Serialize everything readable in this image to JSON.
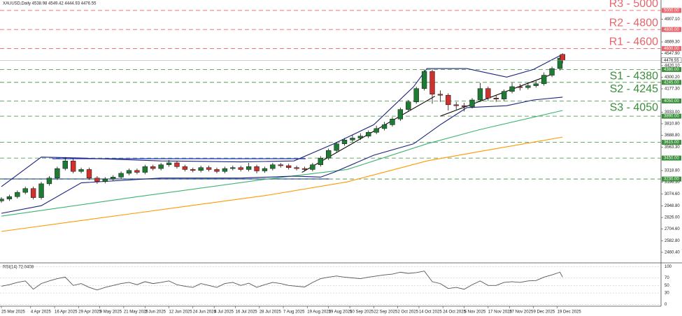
{
  "chart_data": [
    {
      "type": "candlestick",
      "title": "XAUUSD,Daily  4538.98 4549.42 4444.93 4476.55",
      "x": [
        0,
        3,
        6,
        9,
        12,
        15,
        18,
        21,
        24,
        27,
        30,
        33,
        36,
        39,
        42,
        45,
        48,
        51,
        54,
        57,
        60,
        63,
        66,
        69,
        72,
        75,
        78,
        81,
        84,
        87,
        90,
        93,
        96,
        99,
        102,
        105,
        108,
        111,
        114,
        117,
        120,
        123,
        126,
        129,
        132,
        135,
        138,
        141,
        144,
        147,
        150,
        153,
        156,
        159,
        162,
        165,
        168,
        171,
        174,
        177,
        180,
        183,
        186,
        189,
        192,
        195,
        198,
        201,
        204,
        207,
        210,
        211
      ],
      "open": [
        3000,
        3020,
        3045,
        3090,
        3130,
        3035,
        3180,
        3240,
        3340,
        3420,
        3310,
        3330,
        3240,
        3205,
        3230,
        3250,
        3290,
        3320,
        3300,
        3360,
        3340,
        3380,
        3400,
        3360,
        3330,
        3320,
        3350,
        3330,
        3310,
        3340,
        3350,
        3330,
        3360,
        3315,
        3340,
        3380,
        3370,
        3350,
        3340,
        3330,
        3380,
        3450,
        3530,
        3600,
        3640,
        3660,
        3680,
        3720,
        3760,
        3800,
        3860,
        3960,
        4040,
        4180,
        4360,
        4120,
        4110,
        4010,
        4000,
        3990,
        4060,
        4180,
        4080,
        4070,
        4150,
        4200,
        4190,
        4210,
        4230,
        4320,
        4390,
        4538.98
      ],
      "high": [
        3040,
        3065,
        3110,
        3150,
        3150,
        3200,
        3260,
        3360,
        3460,
        3440,
        3350,
        3350,
        3260,
        3250,
        3270,
        3310,
        3340,
        3340,
        3380,
        3380,
        3400,
        3430,
        3420,
        3380,
        3350,
        3370,
        3370,
        3350,
        3360,
        3370,
        3370,
        3400,
        3380,
        3360,
        3400,
        3400,
        3390,
        3370,
        3360,
        3400,
        3470,
        3550,
        3620,
        3660,
        3690,
        3710,
        3740,
        3790,
        3830,
        3880,
        3980,
        4060,
        4200,
        4380,
        4380,
        4160,
        4130,
        4040,
        4030,
        4080,
        4240,
        4200,
        4110,
        4170,
        4240,
        4230,
        4240,
        4260,
        4350,
        4410,
        4530,
        4549.42
      ],
      "low": [
        2980,
        3000,
        3025,
        3070,
        3015,
        3015,
        3160,
        3220,
        3320,
        3290,
        3290,
        3220,
        3180,
        3185,
        3210,
        3230,
        3270,
        3280,
        3280,
        3320,
        3320,
        3360,
        3340,
        3310,
        3300,
        3300,
        3310,
        3290,
        3290,
        3320,
        3310,
        3310,
        3290,
        3295,
        3320,
        3350,
        3330,
        3320,
        3310,
        3310,
        3360,
        3430,
        3510,
        3580,
        3620,
        3640,
        3660,
        3700,
        3740,
        3780,
        3840,
        3940,
        4020,
        4160,
        4020,
        4040,
        3950,
        3960,
        3940,
        3970,
        4040,
        4050,
        4040,
        4050,
        4130,
        4160,
        4170,
        4190,
        4210,
        4300,
        4370,
        4444.93
      ],
      "close": [
        3020,
        3045,
        3090,
        3130,
        3035,
        3180,
        3240,
        3340,
        3420,
        3310,
        3330,
        3240,
        3205,
        3230,
        3250,
        3290,
        3320,
        3300,
        3360,
        3340,
        3380,
        3400,
        3360,
        3330,
        3320,
        3350,
        3330,
        3310,
        3340,
        3350,
        3330,
        3360,
        3315,
        3340,
        3380,
        3370,
        3350,
        3340,
        3330,
        3380,
        3450,
        3530,
        3600,
        3640,
        3660,
        3680,
        3720,
        3760,
        3800,
        3860,
        3960,
        4040,
        4180,
        4360,
        4120,
        4110,
        4010,
        4000,
        3990,
        4060,
        4180,
        4080,
        4070,
        4150,
        4200,
        4190,
        4210,
        4230,
        4320,
        4390,
        4500,
        4476.55
      ],
      "up_color": "#1e7b34",
      "down_color": "#d0312d",
      "overlays": [
        {
          "color": "#3cb371",
          "x": [
            0,
            50,
            100,
            130,
            160,
            180,
            211
          ],
          "values": [
            2840,
            3040,
            3230,
            3330,
            3600,
            3750,
            3950
          ]
        },
        {
          "color": "#ff9800",
          "x": [
            0,
            50,
            100,
            130,
            160,
            180,
            211
          ],
          "values": [
            2680,
            2870,
            3060,
            3200,
            3420,
            3520,
            3670
          ]
        },
        {
          "color": "#1a237e",
          "x": [
            0,
            15,
            30,
            60,
            90,
            110,
            125,
            140,
            155,
            160,
            175,
            190,
            200,
            211
          ],
          "values": [
            3150,
            3460,
            3450,
            3420,
            3410,
            3420,
            3600,
            3800,
            4200,
            4390,
            4390,
            4300,
            4380,
            4540
          ]
        },
        {
          "color": "#1a237e",
          "x": [
            0,
            15,
            30,
            60,
            90,
            110,
            120,
            125,
            140,
            155,
            165,
            175,
            190,
            200,
            211
          ],
          "values": [
            2870,
            2950,
            3190,
            3240,
            3240,
            3260,
            3250,
            3300,
            3480,
            3600,
            3800,
            3980,
            4000,
            4060,
            4090
          ]
        },
        {
          "color": "#000000",
          "x": [
            113,
            163
          ],
          "values": [
            3300,
            4100
          ]
        },
        {
          "color": "#000000",
          "x": [
            165,
            207
          ],
          "values": [
            3890,
            4330
          ]
        }
      ],
      "levels": [
        {
          "value": 5000,
          "text": "R3 - 5000",
          "tag": "5000.00",
          "color": "#e8656b"
        },
        {
          "value": 4800,
          "text": "R2 - 4800",
          "tag": "4800.00",
          "color": "#e8656b"
        },
        {
          "value": 4600,
          "text": "R1 - 4600",
          "tag": "4600.00",
          "color": "#e8656b"
        },
        {
          "value": 4380,
          "text": "S1 - 4380",
          "tag": "4380.00",
          "color": "#3a8f3a"
        },
        {
          "value": 4245,
          "text": "S2 - 4245",
          "tag": "4245.00",
          "color": "#3a8f3a"
        },
        {
          "value": 4050,
          "text": "S3 - 4050",
          "tag": "4050.00",
          "color": "#3a8f3a"
        },
        {
          "value": 3890,
          "tag": "3890.00",
          "color": "#3a8f3a"
        },
        {
          "value": 3615,
          "tag": "3615.00",
          "color": "#3a8f3a"
        },
        {
          "value": 3450,
          "tag": "3450.00",
          "color": "#3a8f3a"
        },
        {
          "value": 3230,
          "tag": "3230.00",
          "color": "#3a8f3a"
        }
      ],
      "xlim": [
        0,
        248
      ],
      "ylim": [
        2357,
        5073
      ],
      "yticks": [
        {
          "value": 4907.1,
          "label": "4907.10"
        },
        {
          "value": 4669.3,
          "label": "4669.30"
        },
        {
          "value": 4547.9,
          "label": "4547.90"
        },
        {
          "value": 4420.1,
          "label": "4420.10"
        },
        {
          "value": 4300.2,
          "label": "4300.20"
        },
        {
          "value": 4177.3,
          "label": "4177.30"
        },
        {
          "value": 3933,
          "label": "3933.00"
        },
        {
          "value": 3810.8,
          "label": "3810.80"
        },
        {
          "value": 3688.8,
          "label": "3688.80"
        },
        {
          "value": 3563.3,
          "label": "3563.30"
        },
        {
          "value": 3318.8,
          "label": "3318.80"
        },
        {
          "value": 3196.5,
          "label": "3196.50"
        },
        {
          "value": 3074.6,
          "label": "3074.60"
        },
        {
          "value": 2948.8,
          "label": "2948.80"
        },
        {
          "value": 2826,
          "label": "2826.00"
        },
        {
          "value": 2704.6,
          "label": "2704.60"
        },
        {
          "value": 2582.8,
          "label": "2582.80"
        },
        {
          "value": 2460.4,
          "label": "2460.40"
        }
      ],
      "xticks": [
        {
          "value": 0,
          "label": "25 Mar 2025"
        },
        {
          "value": 11,
          "label": "4 Apr 2025"
        },
        {
          "value": 20,
          "label": "16 Apr 2025"
        },
        {
          "value": 29,
          "label": "29 Apr 2025"
        },
        {
          "value": 37,
          "label": "9 May 2025"
        },
        {
          "value": 46,
          "label": "21 May 2025"
        },
        {
          "value": 54,
          "label": "2 Jun 2025"
        },
        {
          "value": 63,
          "label": "12 Jun 2025"
        },
        {
          "value": 72,
          "label": "24 Jun 2025"
        },
        {
          "value": 80,
          "label": "4 Jul 2025"
        },
        {
          "value": 88,
          "label": "16 Jul 2025"
        },
        {
          "value": 97,
          "label": "28 Jul 2025"
        },
        {
          "value": 106,
          "label": "7 Aug 2025"
        },
        {
          "value": 115,
          "label": "19 Aug 2025"
        },
        {
          "value": 123,
          "label": "29 Aug 2025"
        },
        {
          "value": 131,
          "label": "10 Sep 2025"
        },
        {
          "value": 140,
          "label": "22 Sep 2025"
        },
        {
          "value": 149,
          "label": "2 Oct 2025"
        },
        {
          "value": 157,
          "label": "14 Oct 2025"
        },
        {
          "value": 166,
          "label": "24 Oct 2025"
        },
        {
          "value": 174,
          "label": "5 Nov 2025"
        },
        {
          "value": 183,
          "label": "17 Nov 2025"
        },
        {
          "value": 191,
          "label": "27 Nov 2025"
        },
        {
          "value": 200,
          "label": "9 Dec 2025"
        },
        {
          "value": 209,
          "label": "19 Dec 2025"
        }
      ]
    },
    {
      "type": "line",
      "title": "RSI(14) 72.0408",
      "color": "#555555",
      "x": [
        0,
        3,
        6,
        9,
        12,
        15,
        18,
        21,
        24,
        27,
        30,
        33,
        36,
        39,
        42,
        45,
        48,
        51,
        54,
        57,
        60,
        63,
        66,
        69,
        72,
        75,
        78,
        81,
        84,
        87,
        90,
        93,
        96,
        99,
        102,
        105,
        108,
        111,
        114,
        117,
        120,
        123,
        126,
        129,
        132,
        135,
        138,
        141,
        144,
        147,
        150,
        153,
        156,
        159,
        162,
        165,
        168,
        171,
        174,
        177,
        180,
        183,
        186,
        189,
        192,
        195,
        198,
        201,
        204,
        207,
        210,
        211
      ],
      "values": [
        48,
        52,
        58,
        62,
        40,
        55,
        62,
        68,
        72,
        50,
        55,
        45,
        38,
        45,
        50,
        55,
        58,
        52,
        60,
        55,
        58,
        62,
        52,
        48,
        45,
        55,
        50,
        45,
        55,
        58,
        50,
        56,
        45,
        52,
        58,
        55,
        50,
        48,
        46,
        58,
        68,
        72,
        75,
        72,
        70,
        68,
        72,
        75,
        78,
        80,
        85,
        82,
        84,
        88,
        60,
        55,
        42,
        45,
        40,
        52,
        62,
        50,
        50,
        58,
        60,
        58,
        62,
        63,
        72,
        78,
        85,
        72.0408
      ],
      "xlim": [
        0,
        248
      ],
      "ylim": [
        -3,
        106
      ],
      "yticks": [
        100,
        70,
        50,
        30,
        0
      ]
    }
  ]
}
